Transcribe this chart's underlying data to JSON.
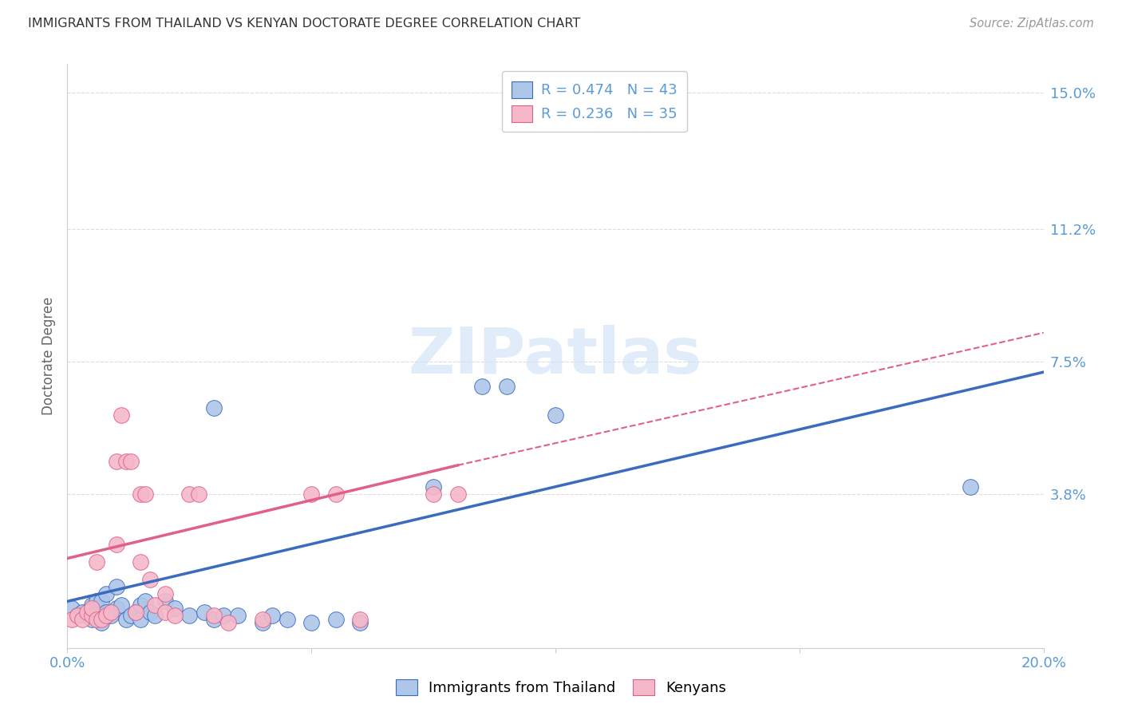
{
  "title": "IMMIGRANTS FROM THAILAND VS KENYAN DOCTORATE DEGREE CORRELATION CHART",
  "source": "Source: ZipAtlas.com",
  "ylabel": "Doctorate Degree",
  "xlim": [
    0.0,
    0.2
  ],
  "ylim": [
    -0.005,
    0.158
  ],
  "yticks": [
    0.0,
    0.038,
    0.075,
    0.112,
    0.15
  ],
  "ytick_labels": [
    "",
    "3.8%",
    "7.5%",
    "11.2%",
    "15.0%"
  ],
  "xticks": [
    0.0,
    0.05,
    0.1,
    0.15,
    0.2
  ],
  "xtick_labels": [
    "0.0%",
    "",
    "",
    "",
    "20.0%"
  ],
  "blue_R": "0.474",
  "blue_N": "43",
  "pink_R": "0.236",
  "pink_N": "35",
  "blue_color": "#aec6e8",
  "pink_color": "#f4b8c8",
  "blue_line_color": "#3a6bbf",
  "pink_line_color": "#e0608a",
  "watermark": "ZIPatlas",
  "blue_scatter": [
    [
      0.001,
      0.006
    ],
    [
      0.002,
      0.004
    ],
    [
      0.003,
      0.005
    ],
    [
      0.004,
      0.004
    ],
    [
      0.005,
      0.003
    ],
    [
      0.005,
      0.007
    ],
    [
      0.006,
      0.008
    ],
    [
      0.006,
      0.006
    ],
    [
      0.007,
      0.002
    ],
    [
      0.007,
      0.008
    ],
    [
      0.008,
      0.01
    ],
    [
      0.008,
      0.005
    ],
    [
      0.009,
      0.004
    ],
    [
      0.01,
      0.006
    ],
    [
      0.01,
      0.012
    ],
    [
      0.011,
      0.007
    ],
    [
      0.012,
      0.003
    ],
    [
      0.013,
      0.004
    ],
    [
      0.014,
      0.005
    ],
    [
      0.015,
      0.003
    ],
    [
      0.015,
      0.007
    ],
    [
      0.016,
      0.008
    ],
    [
      0.017,
      0.005
    ],
    [
      0.018,
      0.004
    ],
    [
      0.02,
      0.008
    ],
    [
      0.022,
      0.006
    ],
    [
      0.025,
      0.004
    ],
    [
      0.028,
      0.005
    ],
    [
      0.03,
      0.003
    ],
    [
      0.032,
      0.004
    ],
    [
      0.035,
      0.004
    ],
    [
      0.04,
      0.002
    ],
    [
      0.042,
      0.004
    ],
    [
      0.045,
      0.003
    ],
    [
      0.05,
      0.002
    ],
    [
      0.055,
      0.003
    ],
    [
      0.06,
      0.002
    ],
    [
      0.03,
      0.062
    ],
    [
      0.085,
      0.068
    ],
    [
      0.09,
      0.068
    ],
    [
      0.1,
      0.06
    ],
    [
      0.185,
      0.04
    ],
    [
      0.075,
      0.04
    ]
  ],
  "pink_scatter": [
    [
      0.001,
      0.003
    ],
    [
      0.002,
      0.004
    ],
    [
      0.003,
      0.003
    ],
    [
      0.004,
      0.005
    ],
    [
      0.005,
      0.004
    ],
    [
      0.005,
      0.006
    ],
    [
      0.006,
      0.003
    ],
    [
      0.007,
      0.003
    ],
    [
      0.008,
      0.004
    ],
    [
      0.009,
      0.005
    ],
    [
      0.01,
      0.047
    ],
    [
      0.011,
      0.06
    ],
    [
      0.012,
      0.047
    ],
    [
      0.013,
      0.047
    ],
    [
      0.014,
      0.005
    ],
    [
      0.015,
      0.038
    ],
    [
      0.016,
      0.038
    ],
    [
      0.017,
      0.014
    ],
    [
      0.018,
      0.007
    ],
    [
      0.02,
      0.005
    ],
    [
      0.022,
      0.004
    ],
    [
      0.025,
      0.038
    ],
    [
      0.027,
      0.038
    ],
    [
      0.03,
      0.004
    ],
    [
      0.033,
      0.002
    ],
    [
      0.04,
      0.003
    ],
    [
      0.05,
      0.038
    ],
    [
      0.055,
      0.038
    ],
    [
      0.06,
      0.003
    ],
    [
      0.075,
      0.038
    ],
    [
      0.08,
      0.038
    ],
    [
      0.01,
      0.024
    ],
    [
      0.015,
      0.019
    ],
    [
      0.02,
      0.01
    ],
    [
      0.006,
      0.019
    ]
  ],
  "blue_line": {
    "x0": 0.0,
    "y0": 0.008,
    "x1": 0.2,
    "y1": 0.072
  },
  "pink_line_solid": {
    "x0": 0.0,
    "y0": 0.02,
    "x1": 0.08,
    "y1": 0.046
  },
  "pink_line_dash": {
    "x0": 0.08,
    "y0": 0.046,
    "x1": 0.2,
    "y1": 0.083
  },
  "grid_color": "#dddddd",
  "background_color": "#ffffff",
  "tick_color": "#5b9bd5",
  "axis_color": "#cccccc",
  "title_color": "#333333",
  "source_color": "#999999",
  "ylabel_color": "#666666"
}
